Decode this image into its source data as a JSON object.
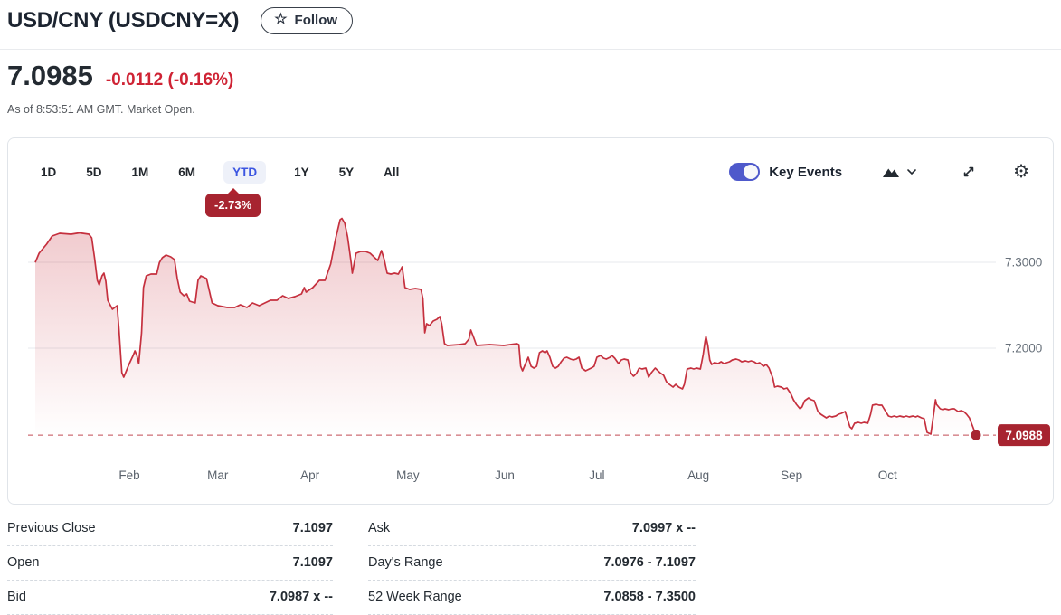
{
  "header": {
    "title": "USD/CNY (USDCNY=X)",
    "follow_label": "Follow",
    "star_icon": "☆"
  },
  "quote": {
    "price": "7.0985",
    "change": "-0.0112",
    "change_pct": "(-0.16%)",
    "as_of": "As of 8:53:51 AM GMT. Market Open."
  },
  "toolbar": {
    "ranges": [
      "1D",
      "5D",
      "1M",
      "6M",
      "YTD",
      "1Y",
      "5Y",
      "All"
    ],
    "selected_range": "YTD",
    "selected_change_pct": "-2.73%",
    "key_events_label": "Key Events",
    "key_events_on": true,
    "gear_icon": "⚙"
  },
  "colors": {
    "line": "#c5303e",
    "fill_top": "rgba(197,40,54,0.26)",
    "fill_bottom": "rgba(197,40,54,0)",
    "dashed_line": "#d98f95",
    "badge_red": "#a72430",
    "change_red": "#cf2334",
    "grid": "#e7e9ec",
    "axis_text": "#67707a",
    "accent_blue": "#3b55e1",
    "toggle_blue": "#4e59cb"
  },
  "chart_data": {
    "type": "area",
    "title": "USD/CNY year-to-date price",
    "x_ticks": [
      "Feb",
      "Mar",
      "Apr",
      "May",
      "Jun",
      "Jul",
      "Aug",
      "Sep",
      "Oct"
    ],
    "x_tick_t": [
      0.1,
      0.194,
      0.292,
      0.396,
      0.499,
      0.597,
      0.705,
      0.804,
      0.906
    ],
    "y_ticks": [
      {
        "label": "7.3000",
        "value": 7.3
      },
      {
        "label": "7.2000",
        "value": 7.2
      }
    ],
    "last_price": 7.0988,
    "last_price_label": "7.0988",
    "ylim": [
      7.08,
      7.36
    ],
    "grid": true,
    "series": [
      {
        "name": "USDCNY=X",
        "points": [
          [
            0,
            7.2998
          ],
          [
            0.004,
            7.3105
          ],
          [
            0.012,
            7.3211
          ],
          [
            0.018,
            7.3305
          ],
          [
            0.026,
            7.3337
          ],
          [
            0.038,
            7.3326
          ],
          [
            0.047,
            7.3342
          ],
          [
            0.057,
            7.3326
          ],
          [
            0.06,
            7.3284
          ],
          [
            0.063,
            7.3053
          ],
          [
            0.066,
            7.2789
          ],
          [
            0.068,
            7.2737
          ],
          [
            0.071,
            7.2842
          ],
          [
            0.073,
            7.2874
          ],
          [
            0.075,
            7.2779
          ],
          [
            0.077,
            7.2558
          ],
          [
            0.082,
            7.2453
          ],
          [
            0.087,
            7.2495
          ],
          [
            0.089,
            7.2211
          ],
          [
            0.092,
            7.1716
          ],
          [
            0.094,
            7.1663
          ],
          [
            0.1,
            7.1821
          ],
          [
            0.104,
            7.1916
          ],
          [
            0.106,
            7.1968
          ],
          [
            0.108,
            7.1916
          ],
          [
            0.11,
            7.1821
          ],
          [
            0.113,
            7.2179
          ],
          [
            0.115,
            7.2705
          ],
          [
            0.118,
            7.2842
          ],
          [
            0.123,
            7.2863
          ],
          [
            0.129,
            7.2863
          ],
          [
            0.132,
            7.2998
          ],
          [
            0.135,
            7.3053
          ],
          [
            0.139,
            7.3084
          ],
          [
            0.144,
            7.3063
          ],
          [
            0.148,
            7.3032
          ],
          [
            0.151,
            7.2811
          ],
          [
            0.154,
            7.2653
          ],
          [
            0.158,
            7.2611
          ],
          [
            0.161,
            7.2632
          ],
          [
            0.164,
            7.2547
          ],
          [
            0.17,
            7.2526
          ],
          [
            0.173,
            7.2789
          ],
          [
            0.176,
            7.2842
          ],
          [
            0.182,
            7.2811
          ],
          [
            0.188,
            7.2526
          ],
          [
            0.194,
            7.2495
          ],
          [
            0.204,
            7.2474
          ],
          [
            0.212,
            7.2474
          ],
          [
            0.218,
            7.2505
          ],
          [
            0.225,
            7.2474
          ],
          [
            0.231,
            7.2526
          ],
          [
            0.238,
            7.2495
          ],
          [
            0.244,
            7.2526
          ],
          [
            0.25,
            7.2558
          ],
          [
            0.257,
            7.2558
          ],
          [
            0.263,
            7.2611
          ],
          [
            0.269,
            7.2579
          ],
          [
            0.276,
            7.26
          ],
          [
            0.283,
            7.2632
          ],
          [
            0.286,
            7.2705
          ],
          [
            0.288,
            7.2653
          ],
          [
            0.295,
            7.2705
          ],
          [
            0.302,
            7.2789
          ],
          [
            0.308,
            7.2789
          ],
          [
            0.314,
            7.2979
          ],
          [
            0.319,
            7.3263
          ],
          [
            0.324,
            7.3495
          ],
          [
            0.326,
            7.3511
          ],
          [
            0.329,
            7.3453
          ],
          [
            0.332,
            7.3295
          ],
          [
            0.334,
            7.3137
          ],
          [
            0.336,
            7.2979
          ],
          [
            0.337,
            7.2874
          ],
          [
            0.338,
            7.2926
          ],
          [
            0.341,
            7.3105
          ],
          [
            0.346,
            7.3126
          ],
          [
            0.351,
            7.3126
          ],
          [
            0.356,
            7.3105
          ],
          [
            0.361,
            7.3053
          ],
          [
            0.364,
            7.3021
          ],
          [
            0.368,
            7.3137
          ],
          [
            0.371,
            7.3032
          ],
          [
            0.374,
            7.2874
          ],
          [
            0.378,
            7.2863
          ],
          [
            0.382,
            7.2874
          ],
          [
            0.386,
            7.2863
          ],
          [
            0.39,
            7.2947
          ],
          [
            0.393,
            7.2705
          ],
          [
            0.398,
            7.2684
          ],
          [
            0.404,
            7.2695
          ],
          [
            0.41,
            7.2684
          ],
          [
            0.412,
            7.2579
          ],
          [
            0.414,
            7.2179
          ],
          [
            0.416,
            7.2284
          ],
          [
            0.419,
            7.2263
          ],
          [
            0.423,
            7.2316
          ],
          [
            0.427,
            7.2337
          ],
          [
            0.43,
            7.2368
          ],
          [
            0.432,
            7.2284
          ],
          [
            0.435,
            7.2053
          ],
          [
            0.438,
            7.2032
          ],
          [
            0.451,
            7.2042
          ],
          [
            0.457,
            7.2053
          ],
          [
            0.461,
            7.2105
          ],
          [
            0.463,
            7.2211
          ],
          [
            0.466,
            7.2126
          ],
          [
            0.469,
            7.2032
          ],
          [
            0.483,
            7.2042
          ],
          [
            0.498,
            7.2032
          ],
          [
            0.512,
            7.2053
          ],
          [
            0.514,
            7.2042
          ],
          [
            0.516,
            7.1789
          ],
          [
            0.518,
            7.1737
          ],
          [
            0.52,
            7.1789
          ],
          [
            0.524,
            7.1895
          ],
          [
            0.527,
            7.1789
          ],
          [
            0.53,
            7.1768
          ],
          [
            0.533,
            7.1789
          ],
          [
            0.536,
            7.1947
          ],
          [
            0.539,
            7.1968
          ],
          [
            0.542,
            7.1947
          ],
          [
            0.544,
            7.1968
          ],
          [
            0.547,
            7.1895
          ],
          [
            0.55,
            7.1789
          ],
          [
            0.553,
            7.1768
          ],
          [
            0.556,
            7.1789
          ],
          [
            0.559,
            7.1842
          ],
          [
            0.562,
            7.1884
          ],
          [
            0.565,
            7.1895
          ],
          [
            0.569,
            7.1874
          ],
          [
            0.572,
            7.1863
          ],
          [
            0.575,
            7.1874
          ],
          [
            0.578,
            7.1895
          ],
          [
            0.581,
            7.1768
          ],
          [
            0.585,
            7.1737
          ],
          [
            0.591,
            7.1768
          ],
          [
            0.594,
            7.1789
          ],
          [
            0.597,
            7.1895
          ],
          [
            0.601,
            7.1916
          ],
          [
            0.604,
            7.1884
          ],
          [
            0.607,
            7.1874
          ],
          [
            0.611,
            7.1895
          ],
          [
            0.613,
            7.1916
          ],
          [
            0.616,
            7.1884
          ],
          [
            0.62,
            7.1821
          ],
          [
            0.623,
            7.1863
          ],
          [
            0.626,
            7.1874
          ],
          [
            0.63,
            7.1863
          ],
          [
            0.633,
            7.1716
          ],
          [
            0.636,
            7.1674
          ],
          [
            0.639,
            7.1705
          ],
          [
            0.642,
            7.1768
          ],
          [
            0.645,
            7.1758
          ],
          [
            0.649,
            7.1768
          ],
          [
            0.652,
            7.1663
          ],
          [
            0.655,
            7.1716
          ],
          [
            0.659,
            7.1768
          ],
          [
            0.662,
            7.1737
          ],
          [
            0.664,
            7.1716
          ],
          [
            0.668,
            7.1684
          ],
          [
            0.671,
            7.1611
          ],
          [
            0.674,
            7.1579
          ],
          [
            0.678,
            7.1547
          ],
          [
            0.681,
            7.1579
          ],
          [
            0.684,
            7.1547
          ],
          [
            0.688,
            7.1526
          ],
          [
            0.69,
            7.1579
          ],
          [
            0.693,
            7.1758
          ],
          [
            0.697,
            7.1768
          ],
          [
            0.7,
            7.1758
          ],
          [
            0.703,
            7.1768
          ],
          [
            0.707,
            7.1758
          ],
          [
            0.71,
            7.1926
          ],
          [
            0.712,
            7.2084
          ],
          [
            0.713,
            7.2137
          ],
          [
            0.715,
            7.2032
          ],
          [
            0.717,
            7.1863
          ],
          [
            0.719,
            7.1811
          ],
          [
            0.722,
            7.1832
          ],
          [
            0.726,
            7.1821
          ],
          [
            0.729,
            7.1842
          ],
          [
            0.732,
            7.1821
          ],
          [
            0.735,
            7.1832
          ],
          [
            0.738,
            7.1842
          ],
          [
            0.741,
            7.1863
          ],
          [
            0.745,
            7.1874
          ],
          [
            0.748,
            7.1863
          ],
          [
            0.751,
            7.1842
          ],
          [
            0.755,
            7.1853
          ],
          [
            0.758,
            7.1842
          ],
          [
            0.761,
            7.1853
          ],
          [
            0.764,
            7.1842
          ],
          [
            0.767,
            7.1821
          ],
          [
            0.77,
            7.1832
          ],
          [
            0.774,
            7.1789
          ],
          [
            0.777,
            7.1811
          ],
          [
            0.78,
            7.1768
          ],
          [
            0.784,
            7.1653
          ],
          [
            0.786,
            7.1547
          ],
          [
            0.789,
            7.1558
          ],
          [
            0.793,
            7.1547
          ],
          [
            0.796,
            7.1526
          ],
          [
            0.799,
            7.1537
          ],
          [
            0.803,
            7.1474
          ],
          [
            0.806,
            7.14
          ],
          [
            0.809,
            7.1347
          ],
          [
            0.813,
            7.1295
          ],
          [
            0.815,
            7.1316
          ],
          [
            0.818,
            7.1389
          ],
          [
            0.822,
            7.1421
          ],
          [
            0.825,
            7.14
          ],
          [
            0.828,
            7.1389
          ],
          [
            0.832,
            7.1263
          ],
          [
            0.835,
            7.1232
          ],
          [
            0.838,
            7.1211
          ],
          [
            0.841,
            7.1189
          ],
          [
            0.844,
            7.1211
          ],
          [
            0.847,
            7.12
          ],
          [
            0.851,
            7.1211
          ],
          [
            0.854,
            7.1232
          ],
          [
            0.857,
            7.1242
          ],
          [
            0.861,
            7.1263
          ],
          [
            0.863,
            7.1189
          ],
          [
            0.866,
            7.1084
          ],
          [
            0.868,
            7.1063
          ],
          [
            0.871,
            7.1126
          ],
          [
            0.875,
            7.1137
          ],
          [
            0.878,
            7.1126
          ],
          [
            0.881,
            7.1137
          ],
          [
            0.885,
            7.1126
          ],
          [
            0.888,
            7.1232
          ],
          [
            0.89,
            7.1337
          ],
          [
            0.894,
            7.1347
          ],
          [
            0.897,
            7.1337
          ],
          [
            0.9,
            7.1337
          ],
          [
            0.904,
            7.1263
          ],
          [
            0.907,
            7.1211
          ],
          [
            0.91,
            7.12
          ],
          [
            0.913,
            7.1211
          ],
          [
            0.916,
            7.12
          ],
          [
            0.919,
            7.1211
          ],
          [
            0.923,
            7.12
          ],
          [
            0.926,
            7.1211
          ],
          [
            0.929,
            7.12
          ],
          [
            0.933,
            7.1211
          ],
          [
            0.936,
            7.12
          ],
          [
            0.938,
            7.1211
          ],
          [
            0.942,
            7.1189
          ],
          [
            0.945,
            7.1179
          ],
          [
            0.948,
            7.1021
          ],
          [
            0.952,
            7.1
          ],
          [
            0.955,
            7.1232
          ],
          [
            0.957,
            7.14
          ],
          [
            0.958,
            7.1347
          ],
          [
            0.962,
            7.1295
          ],
          [
            0.965,
            7.1284
          ],
          [
            0.967,
            7.1295
          ],
          [
            0.971,
            7.1284
          ],
          [
            0.974,
            7.1295
          ],
          [
            0.977,
            7.1295
          ],
          [
            0.981,
            7.1263
          ],
          [
            0.984,
            7.1274
          ],
          [
            0.987,
            7.1263
          ],
          [
            0.99,
            7.1232
          ],
          [
            0.993,
            7.1189
          ],
          [
            0.996,
            7.1105
          ],
          [
            1,
            7.0988
          ]
        ]
      }
    ]
  },
  "stats": {
    "left": [
      {
        "label": "Previous Close",
        "value": "7.1097"
      },
      {
        "label": "Open",
        "value": "7.1097"
      },
      {
        "label": "Bid",
        "value": "7.0987 x --"
      }
    ],
    "right": [
      {
        "label": "Ask",
        "value": "7.0997 x --"
      },
      {
        "label": "Day's Range",
        "value": "7.0976 - 7.1097"
      },
      {
        "label": "52 Week Range",
        "value": "7.0858 - 7.3500"
      }
    ]
  }
}
